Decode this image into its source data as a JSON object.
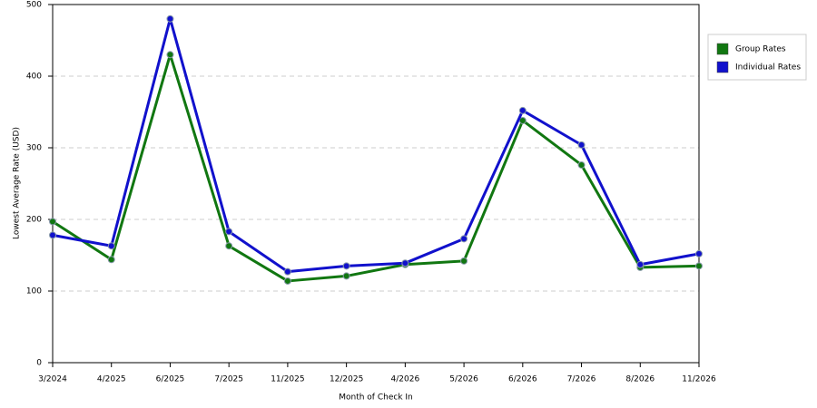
{
  "chart_data": {
    "type": "line",
    "x_label": "Month of Check In",
    "y_label": "Lowest Average Rate (USD)",
    "categories": [
      "3/2024",
      "4/2025",
      "6/2025",
      "7/2025",
      "11/2025",
      "12/2025",
      "4/2026",
      "5/2026",
      "6/2026",
      "7/2026",
      "8/2026",
      "11/2026"
    ],
    "series": [
      {
        "name": "Group Rates",
        "color": "#117711",
        "values": [
          197,
          144,
          430,
          163,
          114,
          121,
          137,
          142,
          338,
          276,
          133,
          135
        ]
      },
      {
        "name": "Individual Rates",
        "color": "#1111cc",
        "values": [
          178,
          163,
          480,
          183,
          127,
          135,
          139,
          173,
          352,
          304,
          137,
          152
        ]
      }
    ],
    "ylim": [
      0,
      500
    ],
    "yticks": [
      0,
      100,
      200,
      300,
      400,
      500
    ],
    "grid": true,
    "legend": "right"
  }
}
